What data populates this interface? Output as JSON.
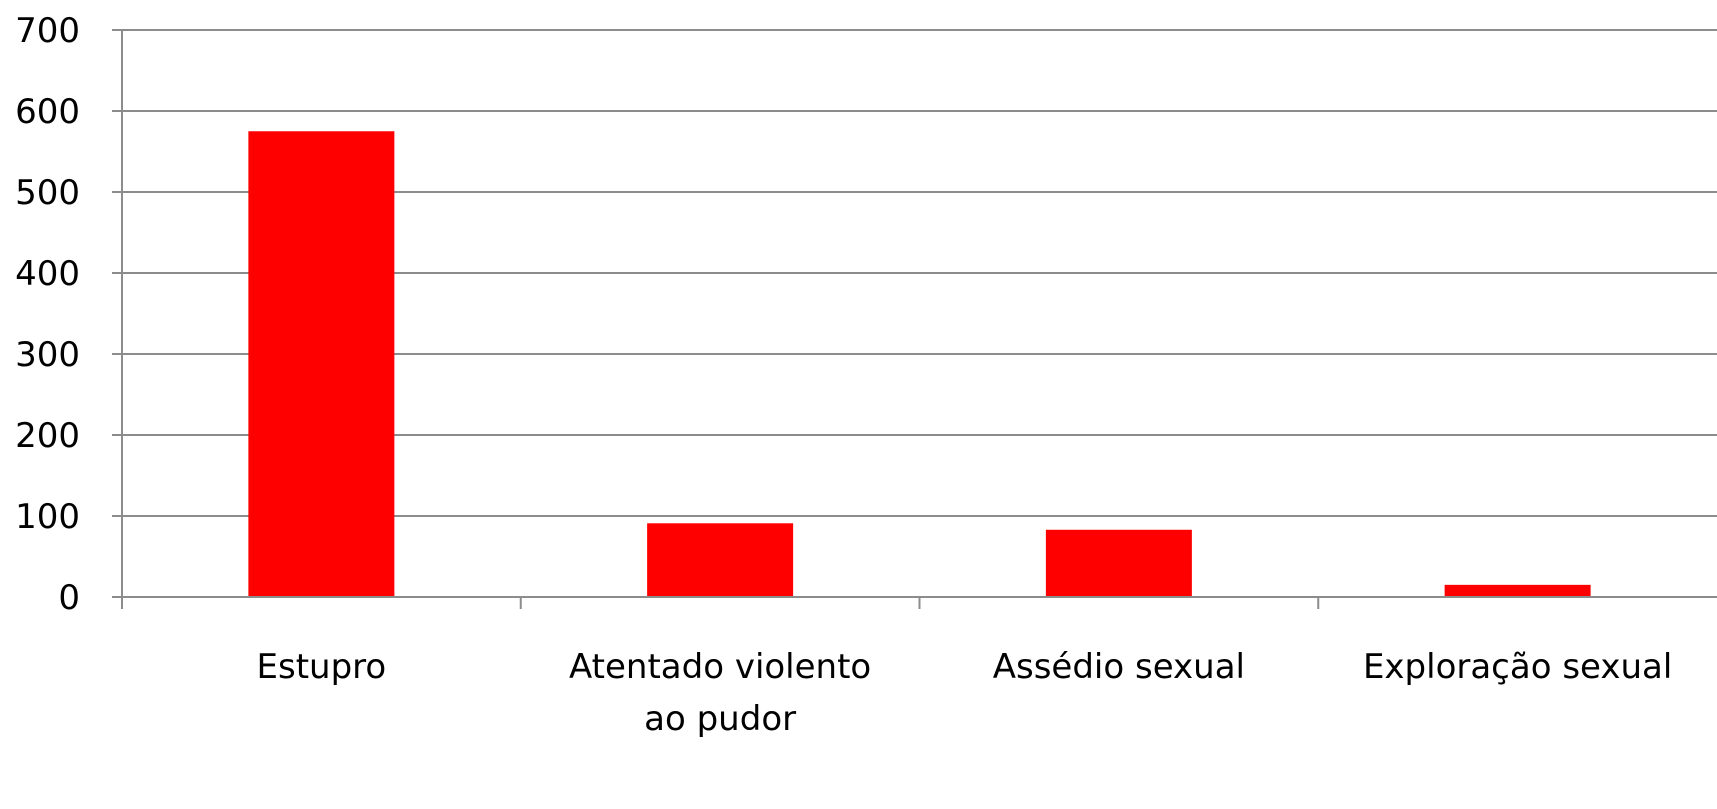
{
  "chart_data": {
    "type": "bar",
    "categories": [
      "Estupro",
      "Atentado violento ao pudor",
      "Assédio sexual",
      "Exploração sexual"
    ],
    "category_label_lines": [
      [
        "Estupro"
      ],
      [
        "Atentado violento",
        "ao pudor"
      ],
      [
        "Assédio sexual"
      ],
      [
        "Exploração sexual"
      ]
    ],
    "values": [
      575,
      91,
      83,
      15
    ],
    "ylim": [
      0,
      700
    ],
    "yticks": [
      0,
      100,
      200,
      300,
      400,
      500,
      600,
      700
    ],
    "grid": true,
    "legend": "none",
    "title": "",
    "xlabel": "",
    "ylabel": "",
    "colors": {
      "bar": "#ff0000",
      "grid": "#8c8c8c",
      "axis": "#8c8c8c",
      "text": "#000000"
    }
  }
}
